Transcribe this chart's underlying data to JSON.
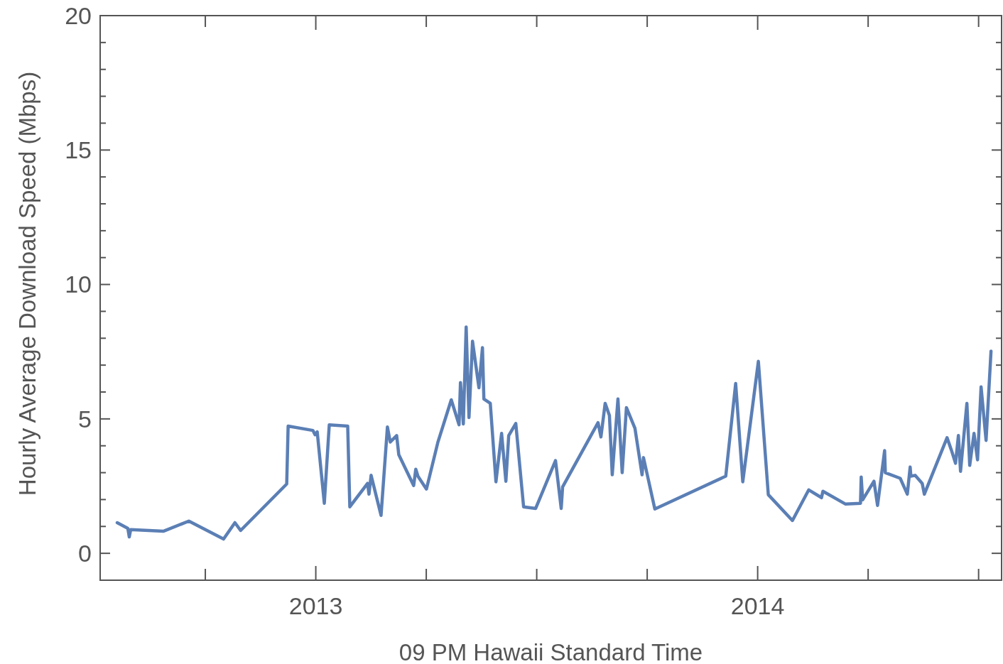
{
  "chart_data": {
    "type": "line",
    "xlabel": "09 PM Hawaii Standard Time",
    "ylabel": "Hourly Average Download Speed (Mbps)",
    "xlim": [
      2012.512,
      2014.552
    ],
    "ylim": [
      -1,
      20
    ],
    "xticks": [
      {
        "value": 2012.75,
        "label": null
      },
      {
        "value": 2013,
        "label": "2013"
      },
      {
        "value": 2013.25,
        "label": null
      },
      {
        "value": 2013.5,
        "label": null
      },
      {
        "value": 2013.75,
        "label": null
      },
      {
        "value": 2014,
        "label": "2014"
      },
      {
        "value": 2014.25,
        "label": null
      },
      {
        "value": 2014.5,
        "label": null
      }
    ],
    "yticks": [
      0,
      {
        "value": 1,
        "label": null
      },
      {
        "value": 2,
        "label": null
      },
      {
        "value": 3,
        "label": null
      },
      {
        "value": 4,
        "label": null
      },
      5,
      {
        "value": 6,
        "label": null
      },
      {
        "value": 7,
        "label": null
      },
      {
        "value": 8,
        "label": null
      },
      {
        "value": 9,
        "label": null
      },
      10,
      {
        "value": 11,
        "label": null
      },
      {
        "value": 12,
        "label": null
      },
      {
        "value": 13,
        "label": null
      },
      {
        "value": 14,
        "label": null
      },
      15,
      {
        "value": 16,
        "label": null
      },
      {
        "value": 17,
        "label": null
      },
      {
        "value": 18,
        "label": null
      },
      {
        "value": 19,
        "label": null
      },
      20
    ],
    "grid": false,
    "marker": "none",
    "line_style": "solid",
    "series": [
      {
        "color": "#5b7fb5",
        "x": [
          2012.5506,
          2012.5746,
          2012.5779,
          2012.5811,
          2012.6549,
          2012.7127,
          2012.7913,
          2012.817,
          2012.8299,
          2012.9342,
          2012.9374,
          2012.9936,
          2012.9984,
          2013.0032,
          2013.0193,
          2013.0305,
          2013.0722,
          2013.077,
          2013.1172,
          2013.1204,
          2013.1252,
          2013.1477,
          2013.1621,
          2013.1685,
          2013.183,
          2013.1878,
          2013.2215,
          2013.2263,
          2013.2311,
          2013.2504,
          2013.2761,
          2013.3066,
          2013.3242,
          2013.3274,
          2013.3339,
          2013.3403,
          2013.3467,
          2013.3547,
          2013.3692,
          2013.3772,
          2013.3804,
          2013.3949,
          2013.4077,
          2013.4205,
          2013.4302,
          2013.4366,
          2013.4526,
          2013.4703,
          2013.4976,
          2013.5425,
          2013.5554,
          2013.5586,
          2013.6388,
          2013.6453,
          2013.6549,
          2013.6645,
          2013.6709,
          2013.6838,
          2013.6934,
          2013.703,
          2013.7223,
          2013.7384,
          2013.7416,
          2013.7673,
          2013.9278,
          2013.9502,
          2013.9663,
          2014.0016,
          2014.0241,
          2014.0787,
          2014.1156,
          2014.1445,
          2014.1477,
          2014.199,
          2014.2327,
          2014.2343,
          2014.2376,
          2014.2632,
          2014.2713,
          2014.2873,
          2014.2889,
          2014.3226,
          2014.3387,
          2014.3451,
          2014.3467,
          2014.3563,
          2014.3724,
          2014.3772,
          2014.4286,
          2014.4382,
          2014.4478,
          2014.4543,
          2014.4591,
          2014.4735,
          2014.4799,
          2014.4896,
          2014.4976,
          2014.5056,
          2014.5169,
          2014.5281
        ],
        "values": [
          1.14,
          0.93,
          0.61,
          0.88,
          0.82,
          1.2,
          0.53,
          1.14,
          0.85,
          2.58,
          4.73,
          4.57,
          4.41,
          4.52,
          1.86,
          4.78,
          4.73,
          1.73,
          2.6,
          2.2,
          2.9,
          1.41,
          4.7,
          4.14,
          4.38,
          3.67,
          2.52,
          3.13,
          2.87,
          2.39,
          4.12,
          5.71,
          4.78,
          6.35,
          4.81,
          8.42,
          5.05,
          7.89,
          6.16,
          7.65,
          5.74,
          5.58,
          2.66,
          4.46,
          2.68,
          4.38,
          4.83,
          1.73,
          1.67,
          3.45,
          1.67,
          2.47,
          4.86,
          4.33,
          5.58,
          5.13,
          2.92,
          5.74,
          3.0,
          5.42,
          4.65,
          2.92,
          3.56,
          1.65,
          2.87,
          6.32,
          2.66,
          7.14,
          2.18,
          1.22,
          2.36,
          2.07,
          2.31,
          1.83,
          1.86,
          2.84,
          1.99,
          2.68,
          1.78,
          3.82,
          3.0,
          2.79,
          2.2,
          3.21,
          2.87,
          2.9,
          2.6,
          2.2,
          4.3,
          3.85,
          3.35,
          4.38,
          3.05,
          5.58,
          3.27,
          4.46,
          3.48,
          6.19,
          4.2,
          7.52
        ]
      }
    ]
  }
}
